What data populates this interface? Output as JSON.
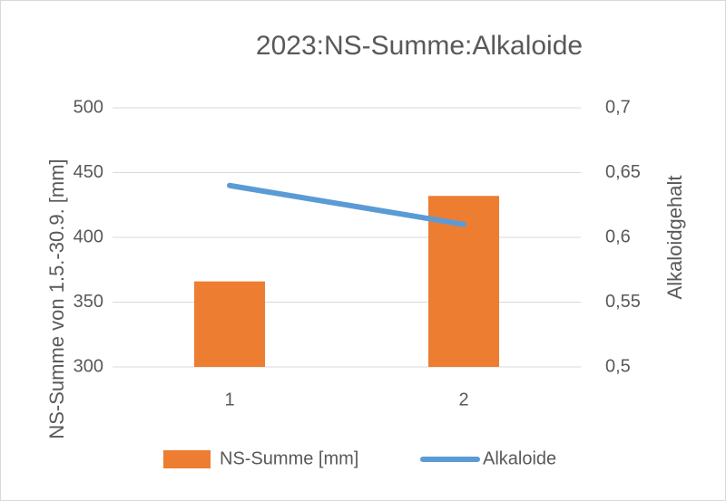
{
  "chart_data": {
    "type": "combo",
    "title": "2023:NS-Summe:Alkaloide",
    "y_label": "NS-Summe von 1.5.-30.9. [mm]",
    "y2_label": "Alkaloidgehalt",
    "categories": [
      "1",
      "2"
    ],
    "series": [
      {
        "name": "NS-Summe [mm]",
        "type": "bar",
        "color": "#ed7d31",
        "values": [
          366,
          432
        ]
      },
      {
        "name": "Alkaloide",
        "type": "line",
        "axis": "y2",
        "color": "#5b9bd5",
        "values": [
          0.64,
          0.61
        ]
      }
    ],
    "ylim": [
      300,
      500
    ],
    "yticks": [
      300,
      350,
      400,
      450,
      500
    ],
    "y2lim": [
      0.5,
      0.7
    ],
    "y2ticks": [
      {
        "value": 0.5,
        "label": "0,5"
      },
      {
        "value": 0.55,
        "label": "0,55"
      },
      {
        "value": 0.6,
        "label": "0,6"
      },
      {
        "value": 0.65,
        "label": "0,65"
      },
      {
        "value": 0.7,
        "label": "0,7"
      }
    ],
    "grid": true,
    "legend": "bottom"
  }
}
